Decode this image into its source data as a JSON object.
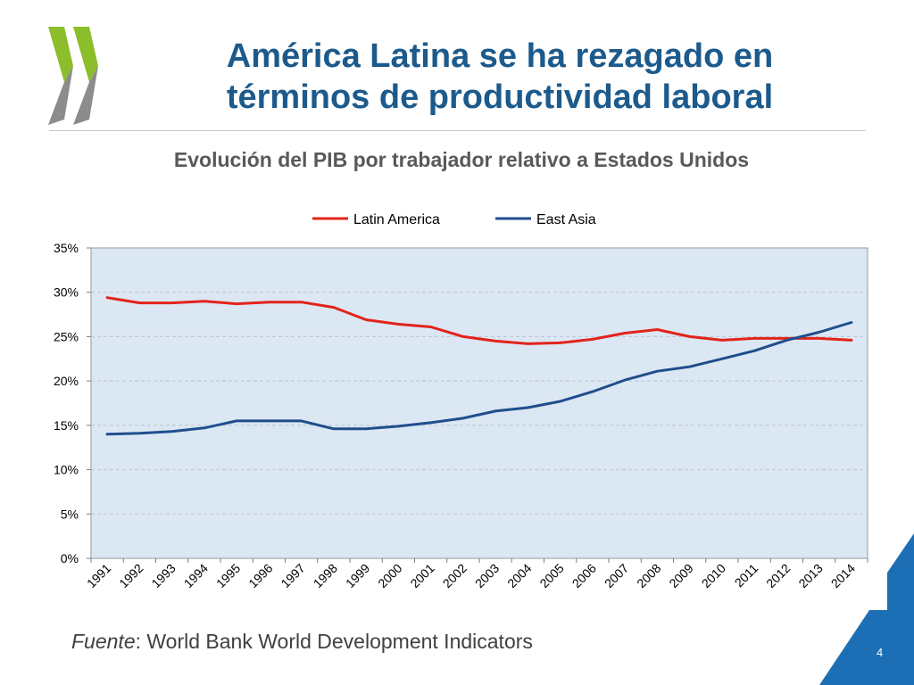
{
  "slide": {
    "title_line1": "América Latina se ha rezagado en",
    "title_line2": "términos de productividad laboral",
    "subtitle": "Evolución del PIB por trabajador relativo a Estados Unidos",
    "source_label": "Fuente",
    "source_text": ": World Bank World Development Indicators",
    "page_number": "4",
    "colors": {
      "title": "#1c5a8c",
      "logo_green": "#8cbd2a",
      "logo_gray": "#8c8c8c",
      "corner_blue": "#1d6fb5",
      "plot_bg": "#dce7f4"
    }
  },
  "chart_data": {
    "type": "line",
    "title": "",
    "xlabel": "",
    "ylabel": "",
    "ylim": [
      0,
      35
    ],
    "yticks": [
      "0%",
      "5%",
      "10%",
      "15%",
      "20%",
      "25%",
      "30%",
      "35%"
    ],
    "ytick_values": [
      0,
      5,
      10,
      15,
      20,
      25,
      30,
      35
    ],
    "grid": true,
    "legend_position": "top-center",
    "categories": [
      "1991",
      "1992",
      "1993",
      "1994",
      "1995",
      "1996",
      "1997",
      "1998",
      "1999",
      "2000",
      "2001",
      "2002",
      "2003",
      "2004",
      "2005",
      "2006",
      "2007",
      "2008",
      "2009",
      "2010",
      "2011",
      "2012",
      "2013",
      "2014"
    ],
    "series": [
      {
        "name": "Latin America",
        "color": "#e2231a",
        "values": [
          29.4,
          28.8,
          28.8,
          29.0,
          28.7,
          28.9,
          28.9,
          28.3,
          26.9,
          26.4,
          26.1,
          25.0,
          24.5,
          24.2,
          24.3,
          24.7,
          25.4,
          25.8,
          25.0,
          24.6,
          24.8,
          24.8,
          24.8,
          24.6
        ]
      },
      {
        "name": "East Asia",
        "color": "#1f4e8c",
        "values": [
          14.0,
          14.1,
          14.3,
          14.7,
          15.5,
          15.5,
          15.5,
          14.6,
          14.6,
          14.9,
          15.3,
          15.8,
          16.6,
          17.0,
          17.7,
          18.8,
          20.1,
          21.1,
          21.6,
          22.5,
          23.4,
          24.6,
          25.5,
          26.6
        ]
      }
    ]
  }
}
